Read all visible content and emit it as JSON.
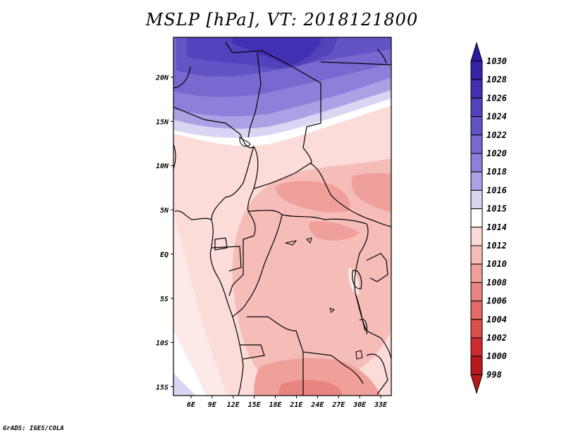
{
  "title": "MSLP [hPa], VT: 2018121800",
  "credit": "GrADS: IGES/COLA",
  "map": {
    "lon_labels": [
      "6E",
      "9E",
      "12E",
      "15E",
      "18E",
      "21E",
      "24E",
      "27E",
      "30E",
      "33E"
    ],
    "lat_labels": [
      "20N",
      "15N",
      "10N",
      "5N",
      "EQ",
      "5S",
      "10S",
      "15S"
    ],
    "lon_range": [
      3.5,
      34.5
    ],
    "lat_range": [
      -16.0,
      24.5
    ]
  },
  "colorbar": {
    "levels": [
      "1030",
      "1028",
      "1026",
      "1024",
      "1022",
      "1020",
      "1018",
      "1016",
      "1015",
      "1014",
      "1012",
      "1010",
      "1008",
      "1006",
      "1004",
      "1002",
      "1000",
      "998"
    ],
    "colors": [
      "#2a1a9e",
      "#3523a8",
      "#4230b2",
      "#5242bc",
      "#6354c6",
      "#7868d0",
      "#8e80da",
      "#aba1e4",
      "#d8d6f2",
      "#ffffff",
      "#fbdcd9",
      "#f6bdb8",
      "#f0a09a",
      "#e98580",
      "#e36a66",
      "#dc4d4c",
      "#cf2b2e",
      "#b8191d"
    ]
  }
}
